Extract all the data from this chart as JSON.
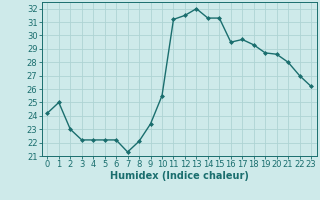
{
  "x": [
    0,
    1,
    2,
    3,
    4,
    5,
    6,
    7,
    8,
    9,
    10,
    11,
    12,
    13,
    14,
    15,
    16,
    17,
    18,
    19,
    20,
    21,
    22,
    23
  ],
  "y": [
    24.2,
    25.0,
    23.0,
    22.2,
    22.2,
    22.2,
    22.2,
    21.3,
    22.1,
    23.4,
    25.5,
    31.2,
    31.5,
    32.0,
    31.3,
    31.3,
    29.5,
    29.7,
    29.3,
    28.7,
    28.6,
    28.0,
    27.0,
    26.2
  ],
  "line_color": "#1a6e6e",
  "marker": "D",
  "markersize": 2.0,
  "linewidth": 1.0,
  "bg_color": "#ceeaea",
  "grid_color": "#aed4d4",
  "xlabel": "Humidex (Indice chaleur)",
  "ylim": [
    21,
    32.5
  ],
  "yticks": [
    21,
    22,
    23,
    24,
    25,
    26,
    27,
    28,
    29,
    30,
    31,
    32
  ],
  "xticks": [
    0,
    1,
    2,
    3,
    4,
    5,
    6,
    7,
    8,
    9,
    10,
    11,
    12,
    13,
    14,
    15,
    16,
    17,
    18,
    19,
    20,
    21,
    22,
    23
  ],
  "xlabel_fontsize": 7,
  "tick_fontsize": 6
}
